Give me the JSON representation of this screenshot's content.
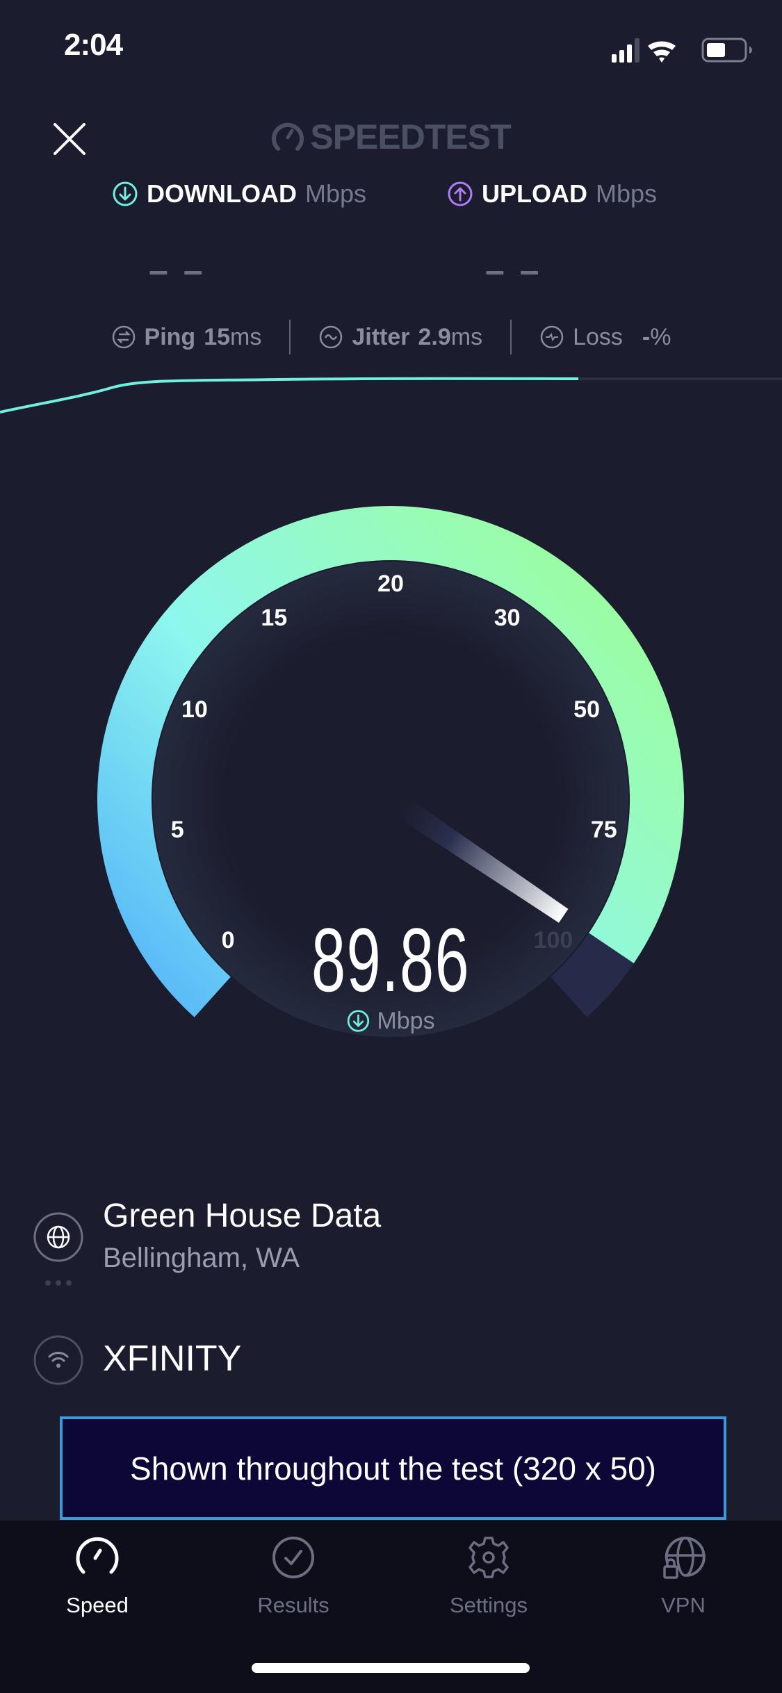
{
  "status_bar": {
    "time": "2:04",
    "icons": [
      "cellular-signal-icon",
      "wifi-icon",
      "battery-icon"
    ]
  },
  "header": {
    "close_icon": "close-icon",
    "logo": "SPEEDTEST"
  },
  "download": {
    "label": "DOWNLOAD",
    "unit": "Mbps",
    "value": "– –",
    "color": "#6ff0e0"
  },
  "upload": {
    "label": "UPLOAD",
    "unit": "Mbps",
    "value": "– –",
    "color": "#b07cf5"
  },
  "stats": [
    {
      "label": "Ping",
      "value": "15",
      "unit": "ms",
      "icon": "ping-icon"
    },
    {
      "label": "Jitter",
      "value": "2.9",
      "unit": "ms",
      "icon": "jitter-icon"
    },
    {
      "label": "Loss",
      "value": "-",
      "unit": "%",
      "icon": "loss-icon"
    }
  ],
  "gauge": {
    "ticks": [
      "0",
      "5",
      "10",
      "15",
      "20",
      "30",
      "50",
      "75",
      "100"
    ],
    "value": 89.86,
    "value_text": "89.86",
    "unit": "Mbps",
    "colors": {
      "start": "#53b3f9",
      "mid": "#8ef7ee",
      "end": "#9cfd9f"
    }
  },
  "server": {
    "name": "Green House Data",
    "location": "Bellingham, WA",
    "icon": "globe-icon"
  },
  "isp": {
    "name": "XFINITY",
    "icon": "wifi-icon"
  },
  "ad": {
    "text": "Shown throughout the test (320 x 50)"
  },
  "tabs": [
    {
      "label": "Speed",
      "icon": "speedometer-icon",
      "active": true
    },
    {
      "label": "Results",
      "icon": "checkmark-circle-icon",
      "active": false
    },
    {
      "label": "Settings",
      "icon": "gear-icon",
      "active": false
    },
    {
      "label": "VPN",
      "icon": "vpn-globe-lock-icon",
      "active": false
    }
  ]
}
